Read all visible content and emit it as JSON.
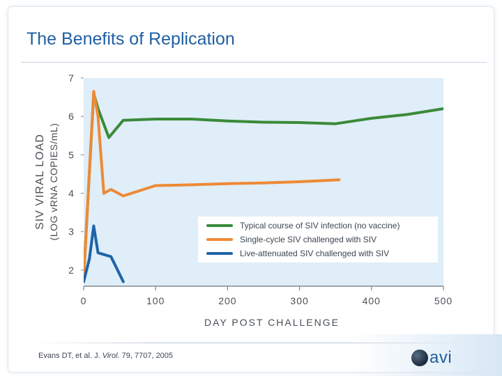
{
  "slide": {
    "title": "The Benefits of Replication",
    "citation_prefix": "Evans DT, et al. J. ",
    "citation_journal": "Virol.",
    "citation_suffix": " 79, 7707, 2005",
    "logo_text": "avi"
  },
  "colors": {
    "plot_bg": "#dfeef8",
    "green": "#3a8a3a",
    "orange": "#ee8a35",
    "blue": "#1f64a8",
    "axis_text": "#4a5056"
  },
  "chart_data": {
    "type": "line",
    "title": "",
    "xlabel": "DAY POST CHALLENGE",
    "ylabel_line1": "SIV VIRAL LOAD",
    "ylabel_line2": "(LOG vRNA COPIES/mL)",
    "xlim": [
      0,
      500
    ],
    "ylim": [
      1.6,
      7
    ],
    "xticks": [
      0,
      100,
      200,
      300,
      400,
      500
    ],
    "yticks": [
      2,
      3,
      4,
      5,
      6,
      7
    ],
    "legend_position": "lower-right",
    "series": [
      {
        "name": "Typical course of SIV infection (no vaccine)",
        "color": "#3a8a3a",
        "x": [
          0,
          14,
          20,
          35,
          55,
          100,
          150,
          200,
          250,
          300,
          350,
          400,
          450,
          500
        ],
        "y": [
          1.8,
          6.6,
          6.2,
          5.45,
          5.9,
          5.93,
          5.93,
          5.88,
          5.85,
          5.84,
          5.81,
          5.95,
          6.05,
          6.2
        ]
      },
      {
        "name": "Single-cycle SIV challenged with SIV",
        "color": "#ee8a35",
        "x": [
          0,
          14,
          20,
          28,
          38,
          55,
          100,
          150,
          200,
          250,
          300,
          355
        ],
        "y": [
          1.8,
          6.65,
          6.0,
          4.0,
          4.1,
          3.93,
          4.2,
          4.22,
          4.25,
          4.27,
          4.3,
          4.35
        ]
      },
      {
        "name": "Live-attenuated SIV challenged with SIV",
        "color": "#1f64a8",
        "x": [
          0,
          8,
          14,
          20,
          38,
          55
        ],
        "y": [
          1.7,
          2.3,
          3.15,
          2.45,
          2.35,
          1.7
        ]
      }
    ]
  }
}
